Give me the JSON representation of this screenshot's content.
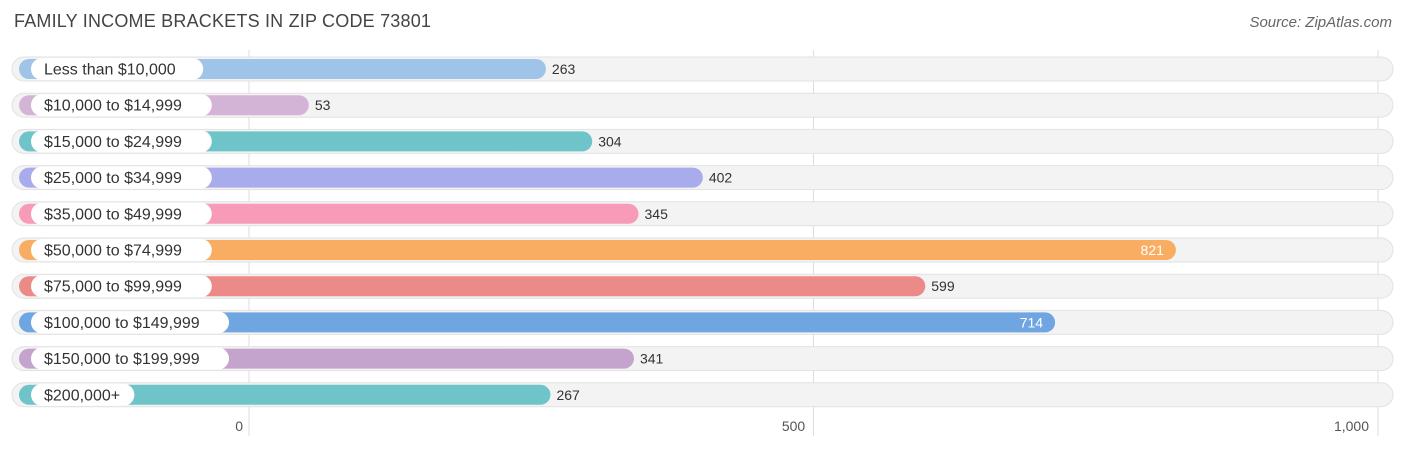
{
  "title": "FAMILY INCOME BRACKETS IN ZIP CODE 73801",
  "source": "Source: ZipAtlas.com",
  "chart_data": {
    "type": "bar",
    "orientation": "horizontal",
    "categories": [
      "Less than $10,000",
      "$10,000 to $14,999",
      "$15,000 to $24,999",
      "$25,000 to $34,999",
      "$35,000 to $49,999",
      "$50,000 to $74,999",
      "$75,000 to $99,999",
      "$100,000 to $149,999",
      "$150,000 to $199,999",
      "$200,000+"
    ],
    "values": [
      263,
      53,
      304,
      402,
      345,
      821,
      599,
      714,
      341,
      267
    ],
    "value_labels": [
      "263",
      "53",
      "304",
      "402",
      "345",
      "821",
      "599",
      "714",
      "341",
      "267"
    ],
    "colors": [
      "#a0c4e8",
      "#d4b4d6",
      "#6ec4c8",
      "#a8acec",
      "#f79bb8",
      "#f9ad62",
      "#eb8a86",
      "#6fa6e2",
      "#c4a4cc",
      "#6ec4c8"
    ],
    "xlim": [
      0,
      1000
    ],
    "ticks": [
      0,
      500,
      1000
    ],
    "tick_labels": [
      "0",
      "500",
      "1,000"
    ],
    "grid": true
  }
}
